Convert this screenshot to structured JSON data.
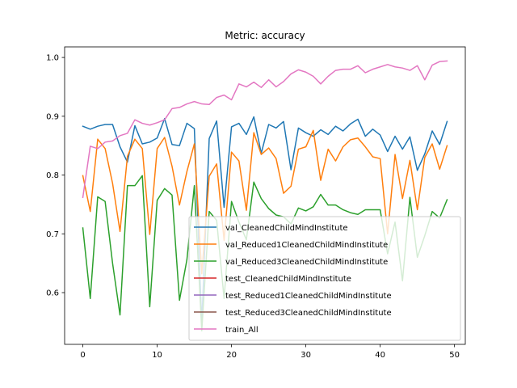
{
  "chart_data": {
    "type": "line",
    "title": "Metric: accuracy",
    "xlabel": "",
    "ylabel": "",
    "xlim": [
      -2.45,
      51.45
    ],
    "ylim": [
      0.512,
      1.018
    ],
    "xticks": [
      0,
      10,
      20,
      30,
      40,
      50
    ],
    "yticks": [
      0.6,
      0.7,
      0.8,
      0.9,
      1.0
    ],
    "ytick_labels": [
      "0.6",
      "0.7",
      "0.8",
      "0.9",
      "1.0"
    ],
    "legend_position": "lower-right",
    "grid": false,
    "series": [
      {
        "name": "val_CleanedChildMindInstitute",
        "color": "#1f77b4",
        "x": [
          0,
          1,
          2,
          3,
          4,
          5,
          6,
          7,
          8,
          9,
          10,
          11,
          12,
          13,
          14,
          15,
          16,
          17,
          18,
          19,
          20,
          21,
          22,
          23,
          24,
          25,
          26,
          27,
          28,
          29,
          30,
          31,
          32,
          33,
          34,
          35,
          36,
          37,
          38,
          39,
          40,
          41,
          42,
          43,
          44,
          45,
          46,
          47,
          48,
          49
        ],
        "values": [
          0.883,
          0.878,
          0.883,
          0.886,
          0.886,
          0.848,
          0.822,
          0.884,
          0.853,
          0.856,
          0.863,
          0.896,
          0.852,
          0.85,
          0.888,
          0.879,
          0.548,
          0.862,
          0.892,
          0.745,
          0.882,
          0.888,
          0.869,
          0.899,
          0.837,
          0.886,
          0.88,
          0.891,
          0.809,
          0.88,
          0.872,
          0.866,
          0.877,
          0.869,
          0.883,
          0.875,
          0.887,
          0.895,
          0.866,
          0.878,
          0.868,
          0.84,
          0.866,
          0.844,
          0.865,
          0.808,
          0.836,
          0.875,
          0.852,
          0.891
        ]
      },
      {
        "name": "val_Reduced1CleanedChildMindInstitute",
        "color": "#ff7f0e",
        "x": [
          0,
          1,
          2,
          3,
          4,
          5,
          6,
          7,
          8,
          9,
          10,
          11,
          12,
          13,
          14,
          15,
          16,
          17,
          18,
          19,
          20,
          21,
          22,
          23,
          24,
          25,
          26,
          27,
          28,
          29,
          30,
          31,
          32,
          33,
          34,
          35,
          36,
          37,
          38,
          39,
          40,
          41,
          42,
          43,
          44,
          45,
          46,
          47,
          48,
          49
        ],
        "values": [
          0.799,
          0.738,
          0.861,
          0.845,
          0.786,
          0.704,
          0.832,
          0.861,
          0.845,
          0.699,
          0.845,
          0.864,
          0.815,
          0.749,
          0.806,
          0.853,
          0.632,
          0.798,
          0.819,
          0.689,
          0.839,
          0.824,
          0.74,
          0.872,
          0.835,
          0.846,
          0.828,
          0.769,
          0.781,
          0.844,
          0.848,
          0.876,
          0.791,
          0.844,
          0.824,
          0.848,
          0.86,
          0.863,
          0.848,
          0.831,
          0.828,
          0.7,
          0.835,
          0.76,
          0.825,
          0.741,
          0.83,
          0.853,
          0.81,
          0.85
        ]
      },
      {
        "name": "val_Reduced3CleanedChildMindInstitute",
        "color": "#2ca02c",
        "x": [
          0,
          1,
          2,
          3,
          4,
          5,
          6,
          7,
          8,
          9,
          10,
          11,
          12,
          13,
          14,
          15,
          16,
          17,
          18,
          19,
          20,
          21,
          22,
          23,
          24,
          25,
          26,
          27,
          28,
          29,
          30,
          31,
          32,
          33,
          34,
          35,
          36,
          37,
          38,
          39,
          40,
          41,
          42,
          43,
          44,
          45,
          46,
          47,
          48,
          49
        ],
        "values": [
          0.71,
          0.59,
          0.763,
          0.755,
          0.65,
          0.562,
          0.782,
          0.782,
          0.799,
          0.576,
          0.757,
          0.777,
          0.766,
          0.587,
          0.656,
          0.782,
          0.535,
          0.738,
          0.723,
          0.59,
          0.755,
          0.72,
          0.69,
          0.788,
          0.76,
          0.743,
          0.732,
          0.729,
          0.717,
          0.744,
          0.739,
          0.746,
          0.767,
          0.749,
          0.749,
          0.741,
          0.736,
          0.733,
          0.741,
          0.741,
          0.741,
          0.666,
          0.72,
          0.62,
          0.762,
          0.66,
          0.697,
          0.738,
          0.727,
          0.758
        ]
      },
      {
        "name": "test_CleanedChildMindInstitute",
        "color": "#d62728",
        "x": [],
        "values": []
      },
      {
        "name": "test_Reduced1CleanedChildMindInstitute",
        "color": "#9467bd",
        "x": [],
        "values": []
      },
      {
        "name": "test_Reduced3CleanedChildMindInstitute",
        "color": "#8c564b",
        "x": [],
        "values": []
      },
      {
        "name": "train_All",
        "color": "#e377c2",
        "x": [
          0,
          1,
          2,
          3,
          4,
          5,
          6,
          7,
          8,
          9,
          10,
          11,
          12,
          13,
          14,
          15,
          16,
          17,
          18,
          19,
          20,
          21,
          22,
          23,
          24,
          25,
          26,
          27,
          28,
          29,
          30,
          31,
          32,
          33,
          34,
          35,
          36,
          37,
          38,
          39,
          40,
          41,
          42,
          43,
          44,
          45,
          46,
          47,
          48,
          49
        ],
        "values": [
          0.762,
          0.849,
          0.845,
          0.856,
          0.858,
          0.867,
          0.871,
          0.894,
          0.888,
          0.885,
          0.889,
          0.894,
          0.913,
          0.915,
          0.921,
          0.925,
          0.921,
          0.92,
          0.932,
          0.936,
          0.928,
          0.955,
          0.95,
          0.958,
          0.949,
          0.962,
          0.95,
          0.959,
          0.972,
          0.979,
          0.975,
          0.968,
          0.955,
          0.968,
          0.978,
          0.98,
          0.98,
          0.986,
          0.974,
          0.98,
          0.984,
          0.988,
          0.984,
          0.982,
          0.978,
          0.986,
          0.962,
          0.987,
          0.993,
          0.994
        ]
      }
    ]
  }
}
